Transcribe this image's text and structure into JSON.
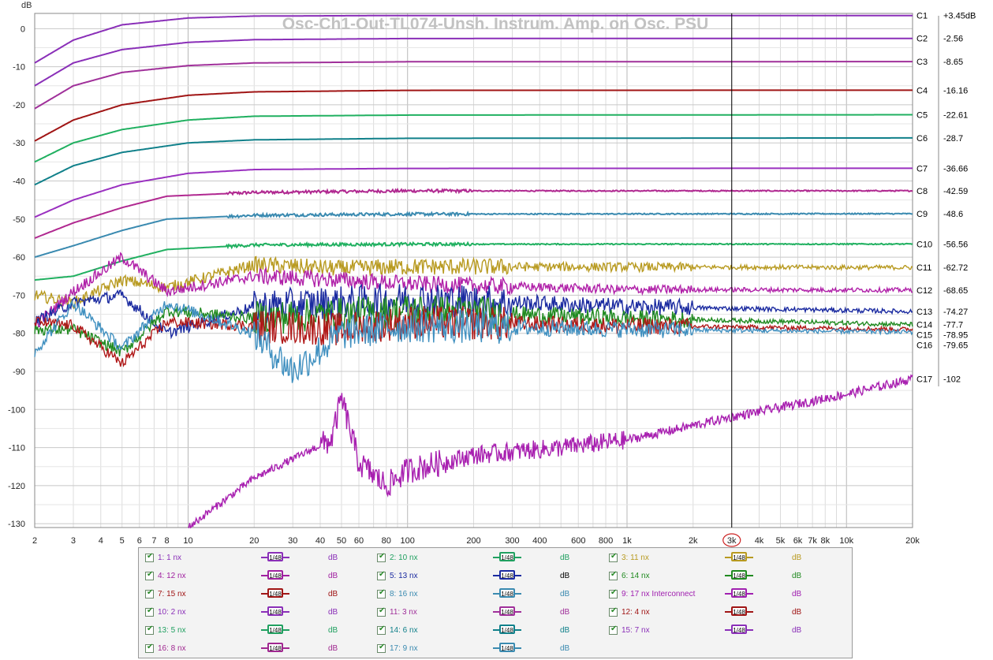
{
  "chart_data": {
    "type": "line",
    "title": "Osc-Ch1-Out-TL074-Unsh. Instrum. Amp. on Osc. PSU",
    "ylabel": "dB",
    "xlabel": "",
    "x_scale": "log",
    "xlim": [
      2,
      20000
    ],
    "ylim": [
      -131,
      4
    ],
    "grid": true,
    "x_ticks": [
      {
        "v": 2,
        "label": "2"
      },
      {
        "v": 3,
        "label": "3"
      },
      {
        "v": 4,
        "label": "4"
      },
      {
        "v": 5,
        "label": "5"
      },
      {
        "v": 6,
        "label": "6"
      },
      {
        "v": 7,
        "label": "7"
      },
      {
        "v": 8,
        "label": "8"
      },
      {
        "v": 10,
        "label": "10"
      },
      {
        "v": 20,
        "label": "20"
      },
      {
        "v": 30,
        "label": "30"
      },
      {
        "v": 40,
        "label": "40"
      },
      {
        "v": 50,
        "label": "50"
      },
      {
        "v": 60,
        "label": "60"
      },
      {
        "v": 80,
        "label": "80"
      },
      {
        "v": 100,
        "label": "100"
      },
      {
        "v": 200,
        "label": "200"
      },
      {
        "v": 300,
        "label": "300"
      },
      {
        "v": 400,
        "label": "400"
      },
      {
        "v": 600,
        "label": "600"
      },
      {
        "v": 800,
        "label": "800"
      },
      {
        "v": 1000,
        "label": "1k"
      },
      {
        "v": 2000,
        "label": "2k"
      },
      {
        "v": 3000,
        "label": "3k"
      },
      {
        "v": 4000,
        "label": "4k"
      },
      {
        "v": 5000,
        "label": "5k"
      },
      {
        "v": 6000,
        "label": "6k"
      },
      {
        "v": 7000,
        "label": "7k"
      },
      {
        "v": 8000,
        "label": "8k"
      },
      {
        "v": 10000,
        "label": "10k"
      },
      {
        "v": 20000,
        "label": "20k"
      }
    ],
    "y_ticks": [
      {
        "v": 0,
        "label": "0"
      },
      {
        "v": -10,
        "label": "-10"
      },
      {
        "v": -20,
        "label": "-20"
      },
      {
        "v": -30,
        "label": "-30"
      },
      {
        "v": -40,
        "label": "-40"
      },
      {
        "v": -50,
        "label": "-50"
      },
      {
        "v": -60,
        "label": "-60"
      },
      {
        "v": -70,
        "label": "-70"
      },
      {
        "v": -80,
        "label": "-80"
      },
      {
        "v": -90,
        "label": "-90"
      },
      {
        "v": -100,
        "label": "-100"
      },
      {
        "v": -110,
        "label": "-110"
      },
      {
        "v": -120,
        "label": "-120"
      },
      {
        "v": -130,
        "label": "-130"
      }
    ],
    "cursor": {
      "x": 3000,
      "label": "3k"
    },
    "series": [
      {
        "name": "C1",
        "readout": "+3.45dB",
        "color": "#8a2fb8",
        "points": [
          [
            2,
            -9
          ],
          [
            3,
            -3
          ],
          [
            5,
            1
          ],
          [
            10,
            2.8
          ],
          [
            20,
            3.3
          ],
          [
            100,
            3.45
          ],
          [
            20000,
            3.45
          ]
        ]
      },
      {
        "name": "C2",
        "readout": "-2.56",
        "color": "#8a2fb8",
        "points": [
          [
            2,
            -15
          ],
          [
            3,
            -9
          ],
          [
            5,
            -5.5
          ],
          [
            10,
            -3.6
          ],
          [
            20,
            -2.9
          ],
          [
            100,
            -2.6
          ],
          [
            20000,
            -2.56
          ]
        ]
      },
      {
        "name": "C3",
        "readout": "-8.65",
        "color": "#a0309a",
        "points": [
          [
            2,
            -21
          ],
          [
            3,
            -15
          ],
          [
            5,
            -11.5
          ],
          [
            10,
            -9.7
          ],
          [
            20,
            -9
          ],
          [
            100,
            -8.7
          ],
          [
            20000,
            -8.65
          ]
        ]
      },
      {
        "name": "C4",
        "readout": "-16.16",
        "color": "#a01515",
        "points": [
          [
            2,
            -29.5
          ],
          [
            3,
            -24
          ],
          [
            5,
            -20
          ],
          [
            10,
            -17.5
          ],
          [
            20,
            -16.6
          ],
          [
            100,
            -16.2
          ],
          [
            20000,
            -16.16
          ]
        ]
      },
      {
        "name": "C5",
        "readout": "-22.61",
        "color": "#20b060",
        "points": [
          [
            2,
            -35
          ],
          [
            3,
            -30
          ],
          [
            5,
            -26.5
          ],
          [
            10,
            -24
          ],
          [
            20,
            -23
          ],
          [
            100,
            -22.7
          ],
          [
            20000,
            -22.61
          ]
        ]
      },
      {
        "name": "C6",
        "readout": "-28.7",
        "color": "#10808a",
        "points": [
          [
            2,
            -41
          ],
          [
            3,
            -36
          ],
          [
            5,
            -32.5
          ],
          [
            10,
            -30
          ],
          [
            20,
            -29.2
          ],
          [
            100,
            -28.8
          ],
          [
            20000,
            -28.7
          ]
        ]
      },
      {
        "name": "C7",
        "readout": "-36.66",
        "color": "#9a30c0",
        "points": [
          [
            2,
            -49.5
          ],
          [
            3,
            -45
          ],
          [
            5,
            -41
          ],
          [
            10,
            -38
          ],
          [
            20,
            -37
          ],
          [
            100,
            -36.7
          ],
          [
            20000,
            -36.66
          ]
        ]
      },
      {
        "name": "C8",
        "readout": "-42.59",
        "color": "#b02890",
        "points": [
          [
            2,
            -55
          ],
          [
            3,
            -51
          ],
          [
            5,
            -47
          ],
          [
            8,
            -44
          ],
          [
            20,
            -43
          ],
          [
            100,
            -42.6
          ],
          [
            20000,
            -42.59
          ]
        ]
      },
      {
        "name": "C9",
        "readout": "-48.6",
        "color": "#3a8ab0",
        "points": [
          [
            2,
            -60
          ],
          [
            3,
            -57
          ],
          [
            5,
            -53
          ],
          [
            8,
            -50
          ],
          [
            20,
            -49
          ],
          [
            100,
            -48.7
          ],
          [
            20000,
            -48.6
          ]
        ]
      },
      {
        "name": "C10",
        "readout": "-56.56",
        "color": "#20b060",
        "points": [
          [
            2,
            -66
          ],
          [
            3,
            -65
          ],
          [
            5,
            -61
          ],
          [
            8,
            -58
          ],
          [
            20,
            -56.8
          ],
          [
            100,
            -56.6
          ],
          [
            20000,
            -56.56
          ]
        ]
      },
      {
        "name": "C11",
        "readout": "-62.72",
        "color": "#b89a20",
        "points": [
          [
            2,
            -70
          ],
          [
            3,
            -72
          ],
          [
            5,
            -66
          ],
          [
            8,
            -68
          ],
          [
            20,
            -62
          ],
          [
            50,
            -63
          ],
          [
            100,
            -62.5
          ],
          [
            20000,
            -62.72
          ]
        ]
      },
      {
        "name": "C12",
        "readout": "-68.65",
        "color": "#b020a8",
        "points": [
          [
            2,
            -78
          ],
          [
            3,
            -69
          ],
          [
            5,
            -60
          ],
          [
            8,
            -69
          ],
          [
            20,
            -65
          ],
          [
            50,
            -66
          ],
          [
            100,
            -67
          ],
          [
            1000,
            -68.5
          ],
          [
            20000,
            -68.65
          ]
        ]
      },
      {
        "name": "C13",
        "readout": "-74.27",
        "color": "#1a2aa0",
        "points": [
          [
            2,
            -77
          ],
          [
            3,
            -72
          ],
          [
            5,
            -70
          ],
          [
            8,
            -80
          ],
          [
            20,
            -73
          ],
          [
            50,
            -72
          ],
          [
            100,
            -71
          ],
          [
            1000,
            -73
          ],
          [
            20000,
            -74.27
          ]
        ]
      },
      {
        "name": "C14",
        "readout": "-77.7",
        "color": "#208a20",
        "points": [
          [
            2,
            -79
          ],
          [
            3,
            -79
          ],
          [
            5,
            -85
          ],
          [
            8,
            -74
          ],
          [
            20,
            -76
          ],
          [
            50,
            -75
          ],
          [
            100,
            -74
          ],
          [
            1000,
            -76
          ],
          [
            20000,
            -77.7
          ]
        ]
      },
      {
        "name": "C15",
        "readout": "-78.95",
        "color": "#b01818",
        "points": [
          [
            2,
            -77
          ],
          [
            3,
            -78
          ],
          [
            5,
            -88
          ],
          [
            8,
            -77
          ],
          [
            20,
            -78
          ],
          [
            50,
            -79
          ],
          [
            100,
            -77
          ],
          [
            1000,
            -78
          ],
          [
            20000,
            -78.95
          ]
        ]
      },
      {
        "name": "C16",
        "readout": "-79.65",
        "color": "#4090c0",
        "points": [
          [
            2,
            -85
          ],
          [
            3,
            -72
          ],
          [
            5,
            -84
          ],
          [
            8,
            -72
          ],
          [
            20,
            -80
          ],
          [
            30,
            -90
          ],
          [
            50,
            -80
          ],
          [
            100,
            -78
          ],
          [
            1000,
            -79
          ],
          [
            20000,
            -79.65
          ]
        ]
      },
      {
        "name": "C17",
        "readout": "-102",
        "color": "#a820b0",
        "points": [
          [
            10,
            -131
          ],
          [
            20,
            -118
          ],
          [
            30,
            -113
          ],
          [
            45,
            -108
          ],
          [
            50,
            -97
          ],
          [
            60,
            -114
          ],
          [
            80,
            -120
          ],
          [
            100,
            -116
          ],
          [
            200,
            -112
          ],
          [
            500,
            -110
          ],
          [
            1000,
            -108
          ],
          [
            3000,
            -102
          ],
          [
            10000,
            -96
          ],
          [
            20000,
            -92
          ]
        ]
      }
    ]
  },
  "legend": {
    "smoothing_label": "1/48",
    "unit": "dB",
    "items": [
      {
        "label": "1: 1 nx",
        "color": "#8a2fb8",
        "unit_color": "#8a2fb8"
      },
      {
        "label": "2: 10 nx",
        "color": "#20a060",
        "unit_color": "#20a060"
      },
      {
        "label": "3: 11 nx",
        "color": "#b89a20",
        "unit_color": "#b89a20"
      },
      {
        "label": "4: 12 nx",
        "color": "#a020a0",
        "unit_color": "#a020a0"
      },
      {
        "label": "5: 13 nx",
        "color": "#1a2aa0",
        "unit_color": "#000000"
      },
      {
        "label": "6: 14 nx",
        "color": "#208a20",
        "unit_color": "#208a20"
      },
      {
        "label": "7: 15 nx",
        "color": "#a01515",
        "unit_color": "#a01515"
      },
      {
        "label": "8: 16 nx",
        "color": "#3a8ab0",
        "unit_color": "#3a8ab0"
      },
      {
        "label": "9: 17 nx Interconnect",
        "color": "#a020b0",
        "unit_color": "#a020b0"
      },
      {
        "label": "10: 2 nx",
        "color": "#8a2fb8",
        "unit_color": "#8a2fb8"
      },
      {
        "label": "11: 3 nx",
        "color": "#a0309a",
        "unit_color": "#a0309a"
      },
      {
        "label": "12: 4 nx",
        "color": "#a01515",
        "unit_color": "#a01515"
      },
      {
        "label": "13: 5 nx",
        "color": "#20a060",
        "unit_color": "#20a060"
      },
      {
        "label": "14: 6 nx",
        "color": "#10808a",
        "unit_color": "#10808a"
      },
      {
        "label": "15: 7 nx",
        "color": "#8a2fb8",
        "unit_color": "#8a2fb8"
      },
      {
        "label": "16: 8 nx",
        "color": "#a02890",
        "unit_color": "#a02890"
      },
      {
        "label": "17: 9 nx",
        "color": "#3a8ab0",
        "unit_color": "#3a8ab0"
      }
    ]
  }
}
